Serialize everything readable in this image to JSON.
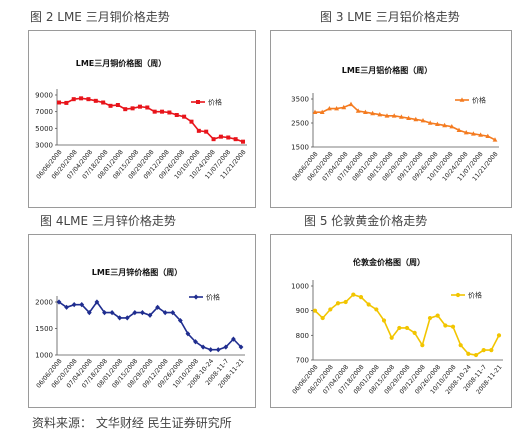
{
  "chart_data": [
    {
      "caption": "图 2   LME 三月铜价格走势",
      "type": "line",
      "title": "LME三月铜价格图（周）",
      "legend": "价格",
      "legend_position": "right",
      "color": "#e8141b",
      "marker": "square",
      "y_ticks": [
        "9000",
        "7000",
        "5000",
        "3000"
      ],
      "ylim": [
        3000,
        9000
      ],
      "x_ticks": [
        "06/06/2008",
        "06/20/2008",
        "07/04/2008",
        "07/18/2008",
        "08/01/2008",
        "08/15/2008",
        "08/29/2008",
        "09/12/2008",
        "09/26/2008",
        "10/10/2008",
        "10/24/2008",
        "11/07/2008",
        "11/21/2008"
      ],
      "values": [
        8100,
        8050,
        8500,
        8600,
        8500,
        8300,
        8100,
        7700,
        7800,
        7300,
        7400,
        7600,
        7500,
        7000,
        7000,
        6900,
        6600,
        6400,
        5800,
        4700,
        4600,
        3700,
        4000,
        3900,
        3700,
        3400
      ]
    },
    {
      "caption": "图 3   LME 三月铝价格走势",
      "type": "line",
      "title": "LME三月铝价格图（周）",
      "legend": "价格",
      "legend_position": "right",
      "color": "#f47b20",
      "marker": "triangle",
      "y_ticks": [
        "3500",
        "2500",
        "1500"
      ],
      "ylim": [
        1500,
        3500
      ],
      "x_ticks": [
        "06/06/2008",
        "06/20/2008",
        "07/04/2008",
        "07/18/2008",
        "08/01/2008",
        "08/15/2008",
        "08/29/2008",
        "09/12/2008",
        "09/26/2008",
        "10/10/2008",
        "10/24/2008",
        "11/07/2008",
        "11/21/2008"
      ],
      "values": [
        2950,
        2950,
        3100,
        3100,
        3150,
        3280,
        3000,
        2950,
        2900,
        2850,
        2800,
        2800,
        2750,
        2700,
        2650,
        2600,
        2500,
        2450,
        2400,
        2350,
        2200,
        2100,
        2050,
        2000,
        1950,
        1800
      ]
    },
    {
      "caption": "图 4LME 三月锌价格走势",
      "type": "line",
      "title": "LME三月锌价格图（周）",
      "legend": "价格",
      "legend_position": "right",
      "color": "#1f2d8f",
      "marker": "diamond",
      "y_ticks": [
        "2000",
        "1500",
        "1000"
      ],
      "ylim": [
        1000,
        2000
      ],
      "x_ticks": [
        "06/06/2008",
        "06/20/2008",
        "07/04/2008",
        "07/18/2008",
        "08/01/2008",
        "08/15/2008",
        "08/29/2008",
        "09/12/2008",
        "09/26/2008",
        "10/10/2008",
        "2008-10-24",
        "2008-11-7",
        "2008-11-21"
      ],
      "values": [
        2000,
        1900,
        1950,
        1950,
        1800,
        2000,
        1800,
        1800,
        1700,
        1700,
        1800,
        1800,
        1750,
        1900,
        1800,
        1800,
        1650,
        1400,
        1250,
        1150,
        1100,
        1100,
        1150,
        1300,
        1150
      ]
    },
    {
      "caption": "图 5   伦敦黄金价格走势",
      "type": "line",
      "title": "伦敦金价格图（周）",
      "legend": "价格",
      "legend_position": "right",
      "color": "#f2c500",
      "marker": "circle",
      "y_ticks": [
        "1000",
        "900",
        "800",
        "700"
      ],
      "ylim": [
        700,
        1000
      ],
      "x_ticks": [
        "06/06/2008",
        "06/20/2008",
        "07/04/2008",
        "07/18/2008",
        "08/01/2008",
        "08/15/2008",
        "08/29/2008",
        "09/12/2008",
        "09/26/2008",
        "10/10/2008",
        "2008-10-24",
        "2008-11-7",
        "2008-11-21"
      ],
      "values": [
        900,
        870,
        905,
        930,
        935,
        965,
        955,
        925,
        905,
        860,
        790,
        830,
        830,
        810,
        760,
        870,
        880,
        840,
        835,
        760,
        725,
        720,
        740,
        740,
        800
      ]
    }
  ],
  "source": "资料来源： 文华财经  民生证券研究所"
}
